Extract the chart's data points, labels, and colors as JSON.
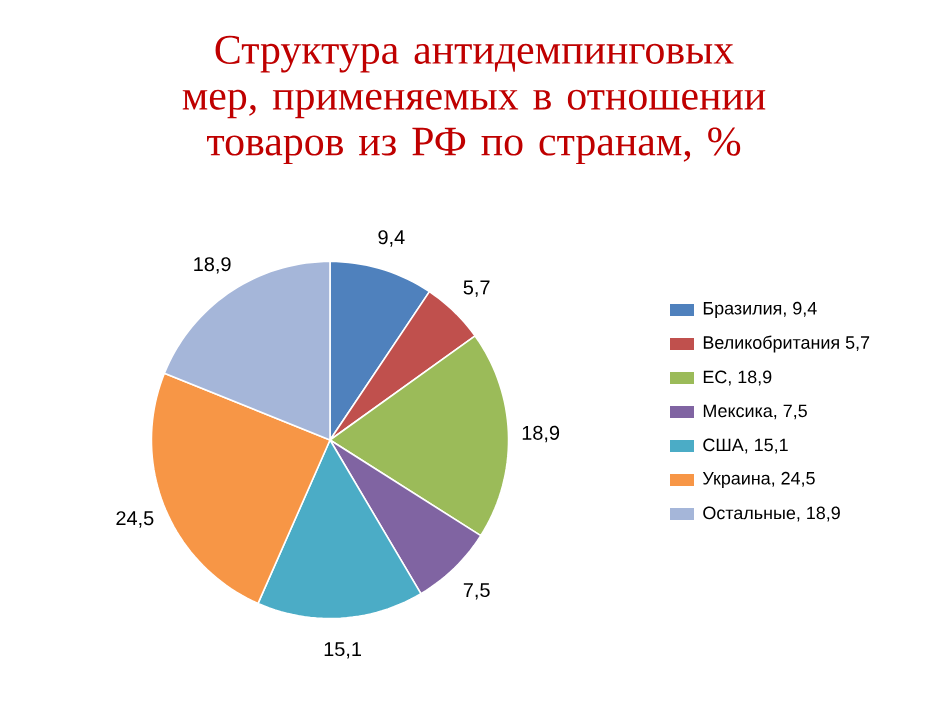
{
  "chart_data": {
    "type": "pie",
    "title": "Структура антидемпинговых мер, применяемых в отношении товаров из РФ по странам, %",
    "categories": [
      "Бразилия, 9,4",
      "Великобритания 5,7",
      "ЕС, 18,9",
      "Мексика, 7,5",
      "США, 15,1",
      "Украина, 24,5",
      "Остальные, 18,9"
    ],
    "values": [
      9.4,
      5.7,
      18.9,
      7.5,
      15.1,
      24.5,
      18.9
    ],
    "value_labels": [
      "9,4",
      "5,7",
      "18,9",
      "7,5",
      "15,1",
      "24,5",
      "18,9"
    ],
    "colors": [
      "#4f81bd",
      "#c0504d",
      "#9bbb59",
      "#8064a2",
      "#4bacc6",
      "#f79646",
      "#a5b6d9"
    ],
    "legend": "right"
  }
}
